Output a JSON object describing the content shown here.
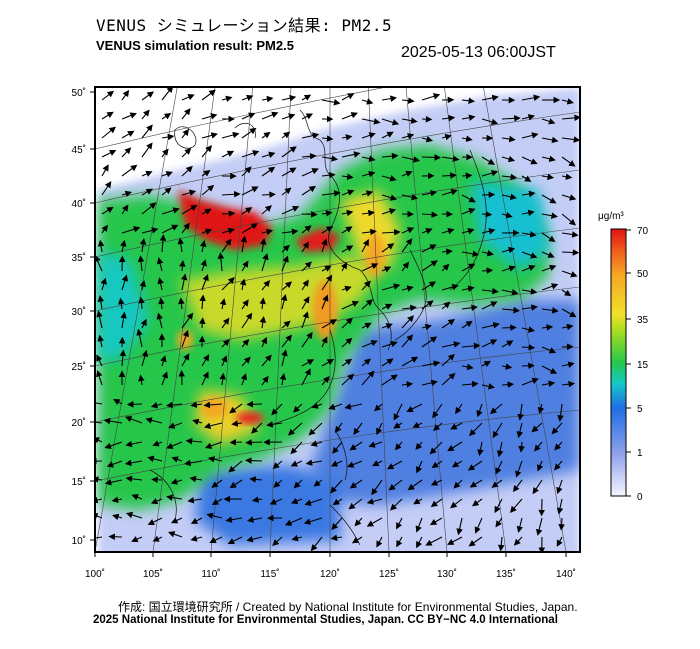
{
  "title_ja": "VENUS シミュレーション結果: PM2.5",
  "title_en": "VENUS simulation result: PM2.5",
  "timestamp": "2025-05-13 06:00JST",
  "colorbar": {
    "unit": "μg/m³",
    "ticks": [
      "70",
      "50",
      "35",
      "15",
      "5",
      "1",
      "0"
    ]
  },
  "axes": {
    "lon_ticks": [
      "100˚",
      "105˚",
      "110˚",
      "115˚",
      "120˚",
      "125˚",
      "130˚",
      "135˚",
      "140˚"
    ],
    "lat_ticks": [
      "50˚",
      "45˚",
      "40˚",
      "35˚",
      "30˚",
      "25˚",
      "20˚",
      "15˚",
      "10˚"
    ]
  },
  "colors": {
    "c0": "#f4f6ff",
    "c1": "#8fa0ea",
    "c5": "#1f6ee6",
    "c10": "#14c8c8",
    "c15": "#25c84a",
    "c25": "#aadd20",
    "c35": "#f2e12a",
    "c50": "#f5a623",
    "c60": "#f05a1c",
    "c70": "#e01414"
  },
  "credit_ja": "作成: 国立環境研究所 / Created by National Institute for Environmental Studies, Japan.",
  "credit_en": "2025 National Institute for Environmental Studies, Japan. CC BY−NC 4.0 International"
}
